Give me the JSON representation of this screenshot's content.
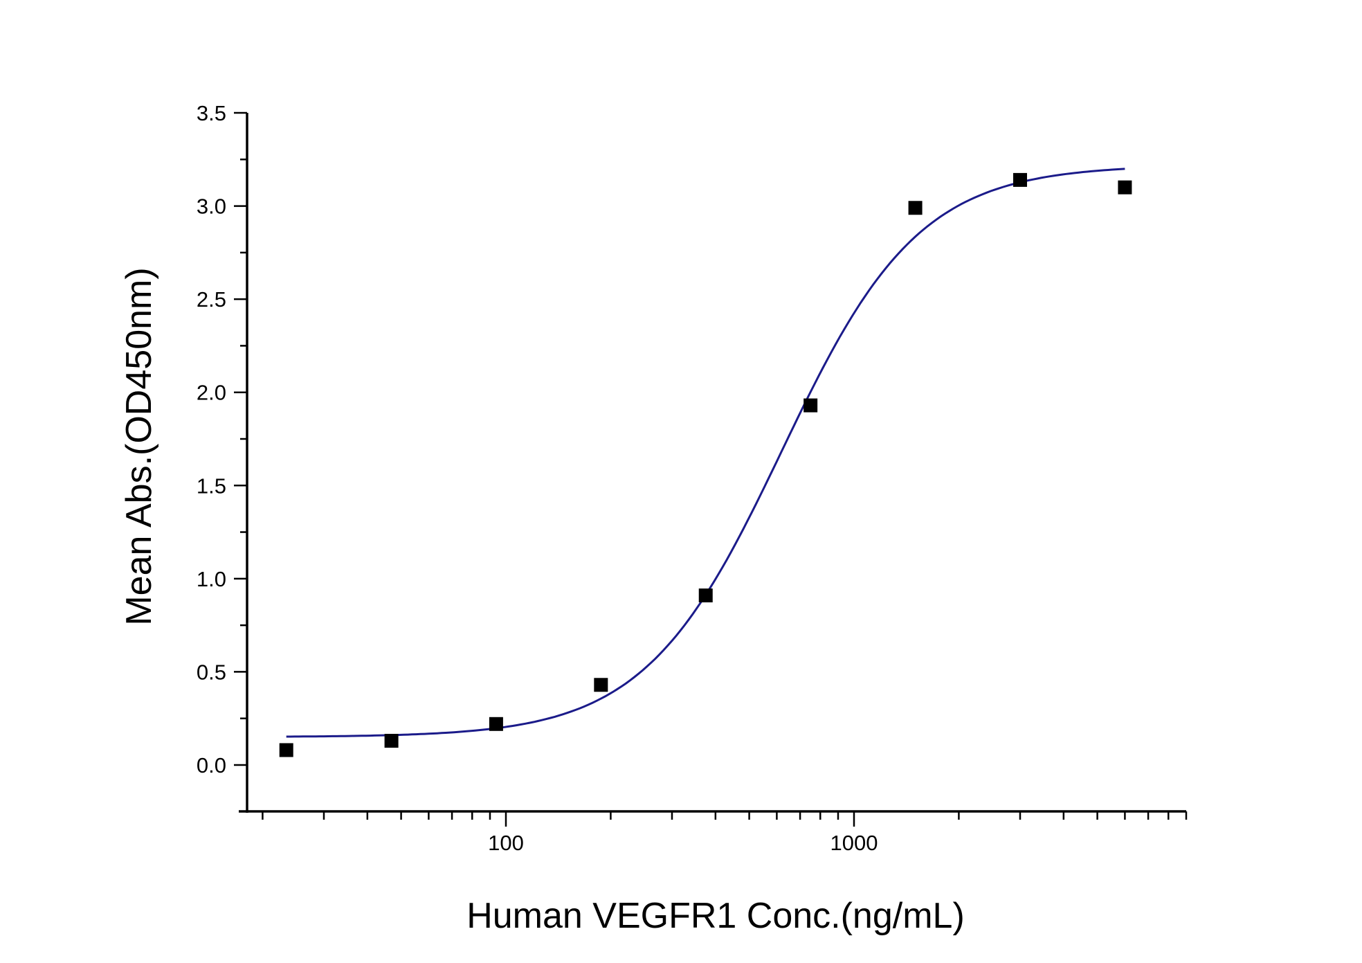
{
  "chart_data": {
    "type": "scatter",
    "title": "",
    "xlabel": "Human VEGFR1 Conc.(ng/mL)",
    "ylabel": "Mean Abs.(OD450nm)",
    "xscale": "log",
    "xlim": [
      17,
      9000
    ],
    "ylim": [
      -0.25,
      3.5
    ],
    "xticks": [
      100,
      1000
    ],
    "xtick_labels": [
      "100",
      "1000"
    ],
    "yticks": [
      0.0,
      0.5,
      1.0,
      1.5,
      2.0,
      2.5,
      3.0,
      3.5
    ],
    "ytick_labels": [
      "0.0",
      "0.5",
      "1.0",
      "1.5",
      "2.0",
      "2.5",
      "3.0",
      "3.5"
    ],
    "grid": false,
    "legend": "none",
    "series": [
      {
        "marker": "square",
        "color": "#000000",
        "x": [
          23.4,
          46.9,
          93.75,
          187.5,
          375,
          750,
          1500,
          3000,
          6000
        ],
        "y": [
          0.08,
          0.13,
          0.22,
          0.43,
          0.91,
          1.93,
          2.99,
          3.14,
          3.1
        ]
      }
    ],
    "fit_curve": {
      "model": "4PL",
      "color": "#1b1b8a",
      "bottom": 0.15,
      "top": 3.22,
      "ec50": 620,
      "hill": 2.2,
      "x_range": [
        23.4,
        6000
      ]
    }
  }
}
